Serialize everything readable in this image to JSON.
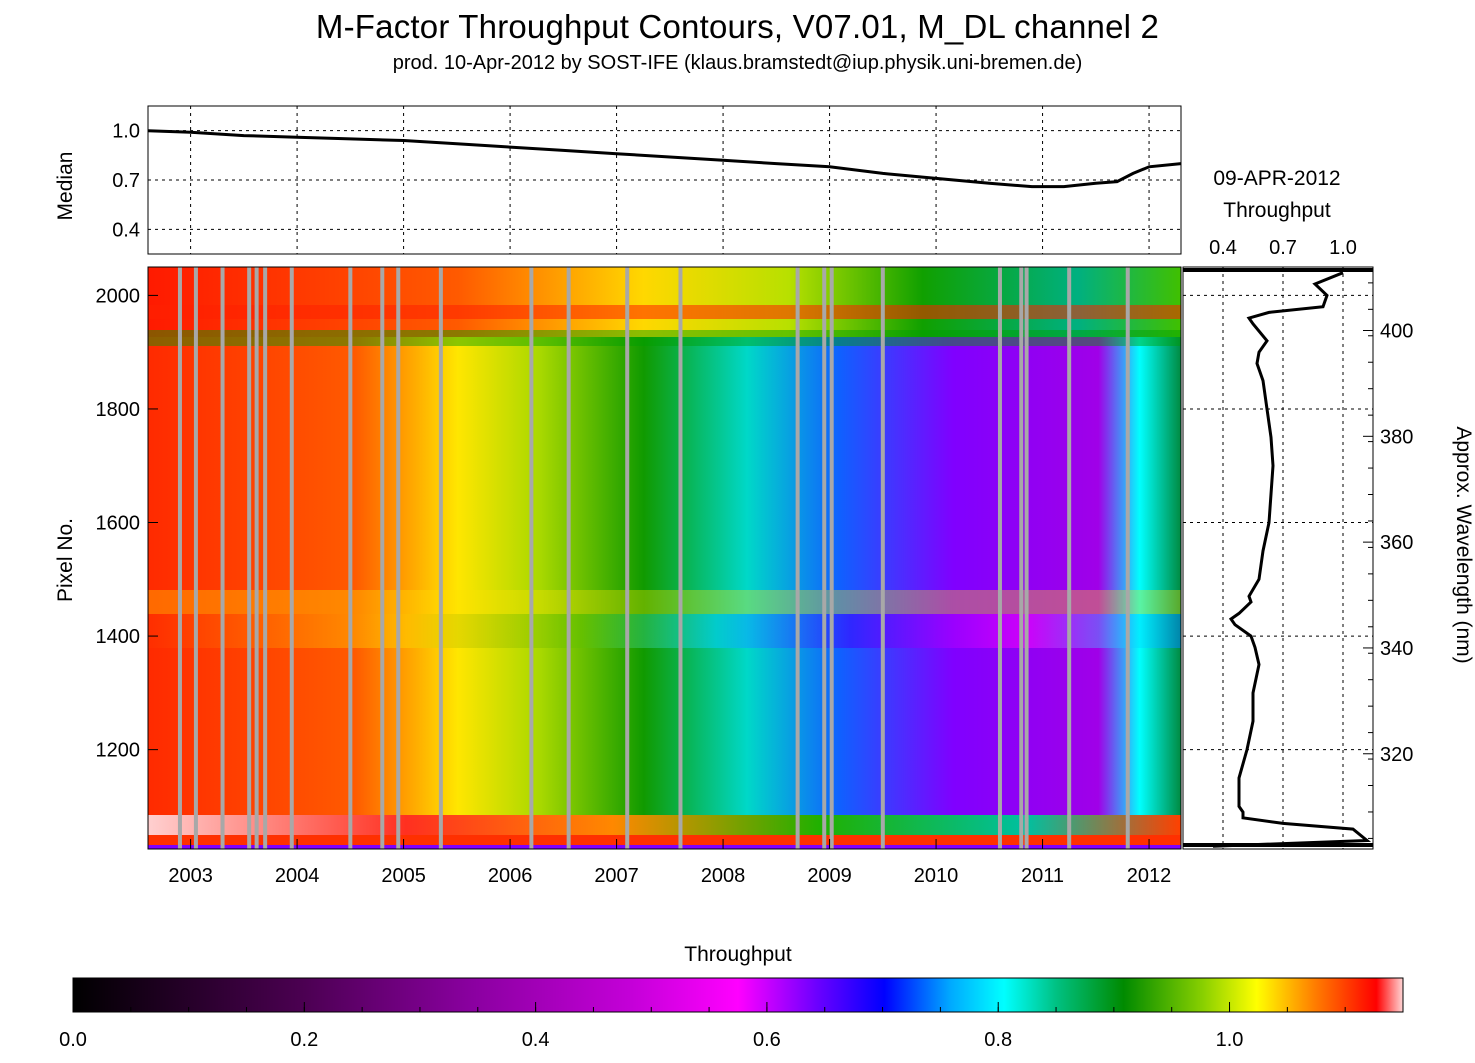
{
  "title": "M-Factor Throughput Contours, V07.01, M_DL channel 2",
  "subtitle": "prod. 10-Apr-2012 by SOST-IFE (klaus.bramstedt@iup.physik.uni-bremen.de)",
  "chart_data": [
    {
      "type": "line",
      "id": "median-panel",
      "ylabel": "Median",
      "yticks": [
        0.4,
        0.7,
        1.0
      ],
      "ylim": [
        0.25,
        1.15
      ],
      "xlim": [
        2002.6,
        2012.3
      ],
      "xticks": [
        "2003",
        "2004",
        "2005",
        "2006",
        "2007",
        "2008",
        "2009",
        "2010",
        "2011",
        "2012"
      ],
      "grid": true,
      "series": [
        {
          "x": [
            2002.6,
            2003.0,
            2003.5,
            2004.0,
            2004.5,
            2005.0,
            2005.5,
            2006.0,
            2006.5,
            2007.0,
            2007.5,
            2008.0,
            2008.5,
            2009.0,
            2009.5,
            2010.0,
            2010.5,
            2010.9,
            2011.2,
            2011.5,
            2011.7,
            2011.85,
            2012.0,
            2012.3
          ],
          "y": [
            1.0,
            0.99,
            0.97,
            0.96,
            0.95,
            0.94,
            0.92,
            0.9,
            0.88,
            0.86,
            0.84,
            0.82,
            0.8,
            0.78,
            0.74,
            0.71,
            0.68,
            0.66,
            0.66,
            0.68,
            0.69,
            0.74,
            0.78,
            0.8
          ]
        }
      ]
    },
    {
      "type": "heatmap",
      "id": "contour-panel",
      "ylabel": "Pixel No.",
      "yticks": [
        1200,
        1400,
        1600,
        1800,
        2000
      ],
      "ylim": [
        1025,
        2050
      ],
      "xlim": [
        2002.6,
        2012.3
      ],
      "xticks": [
        "2003",
        "2004",
        "2005",
        "2006",
        "2007",
        "2008",
        "2009",
        "2010",
        "2011",
        "2012"
      ],
      "colorbar": {
        "label": "Throughput",
        "range": [
          0.0,
          1.15
        ],
        "ticks": [
          "0.0",
          "0.2",
          "0.4",
          "0.6",
          "0.8",
          "1.0"
        ]
      },
      "gap_years": [
        2002.9,
        2003.05,
        2003.3,
        2003.55,
        2003.62,
        2003.7,
        2003.95,
        2004.5,
        2004.8,
        2004.95,
        2005.35,
        2006.2,
        2006.55,
        2007.1,
        2007.6,
        2008.7,
        2008.95,
        2009.02,
        2009.5,
        2010.6,
        2010.8,
        2010.85,
        2011.25,
        2011.8
      ]
    },
    {
      "type": "line",
      "id": "throughput-profile",
      "title": "09-APR-2012",
      "xlabel": "Throughput",
      "xticks": [
        0.4,
        0.7,
        1.0
      ],
      "xlim": [
        0.2,
        1.15
      ],
      "ylabel": "Approx. Wavelength (nm)",
      "yticks": [
        320,
        340,
        360,
        380,
        400
      ],
      "series": [
        {
          "pixel": [
            1030,
            1040,
            1060,
            1070,
            1080,
            1090,
            1100,
            1150,
            1200,
            1250,
            1300,
            1350,
            1380,
            1400,
            1420,
            1430,
            1440,
            1460,
            1470,
            1500,
            1550,
            1600,
            1650,
            1700,
            1750,
            1800,
            1850,
            1880,
            1900,
            1920,
            1950,
            1960,
            1970,
            1980,
            2000,
            2020,
            2040
          ],
          "throughput": [
            0.35,
            1.12,
            1.05,
            0.7,
            0.5,
            0.5,
            0.48,
            0.48,
            0.52,
            0.55,
            0.55,
            0.58,
            0.56,
            0.54,
            0.46,
            0.44,
            0.48,
            0.54,
            0.53,
            0.58,
            0.6,
            0.63,
            0.64,
            0.65,
            0.64,
            0.62,
            0.6,
            0.57,
            0.58,
            0.62,
            0.55,
            0.53,
            0.63,
            0.9,
            0.92,
            0.86,
            1.0
          ]
        }
      ]
    }
  ]
}
